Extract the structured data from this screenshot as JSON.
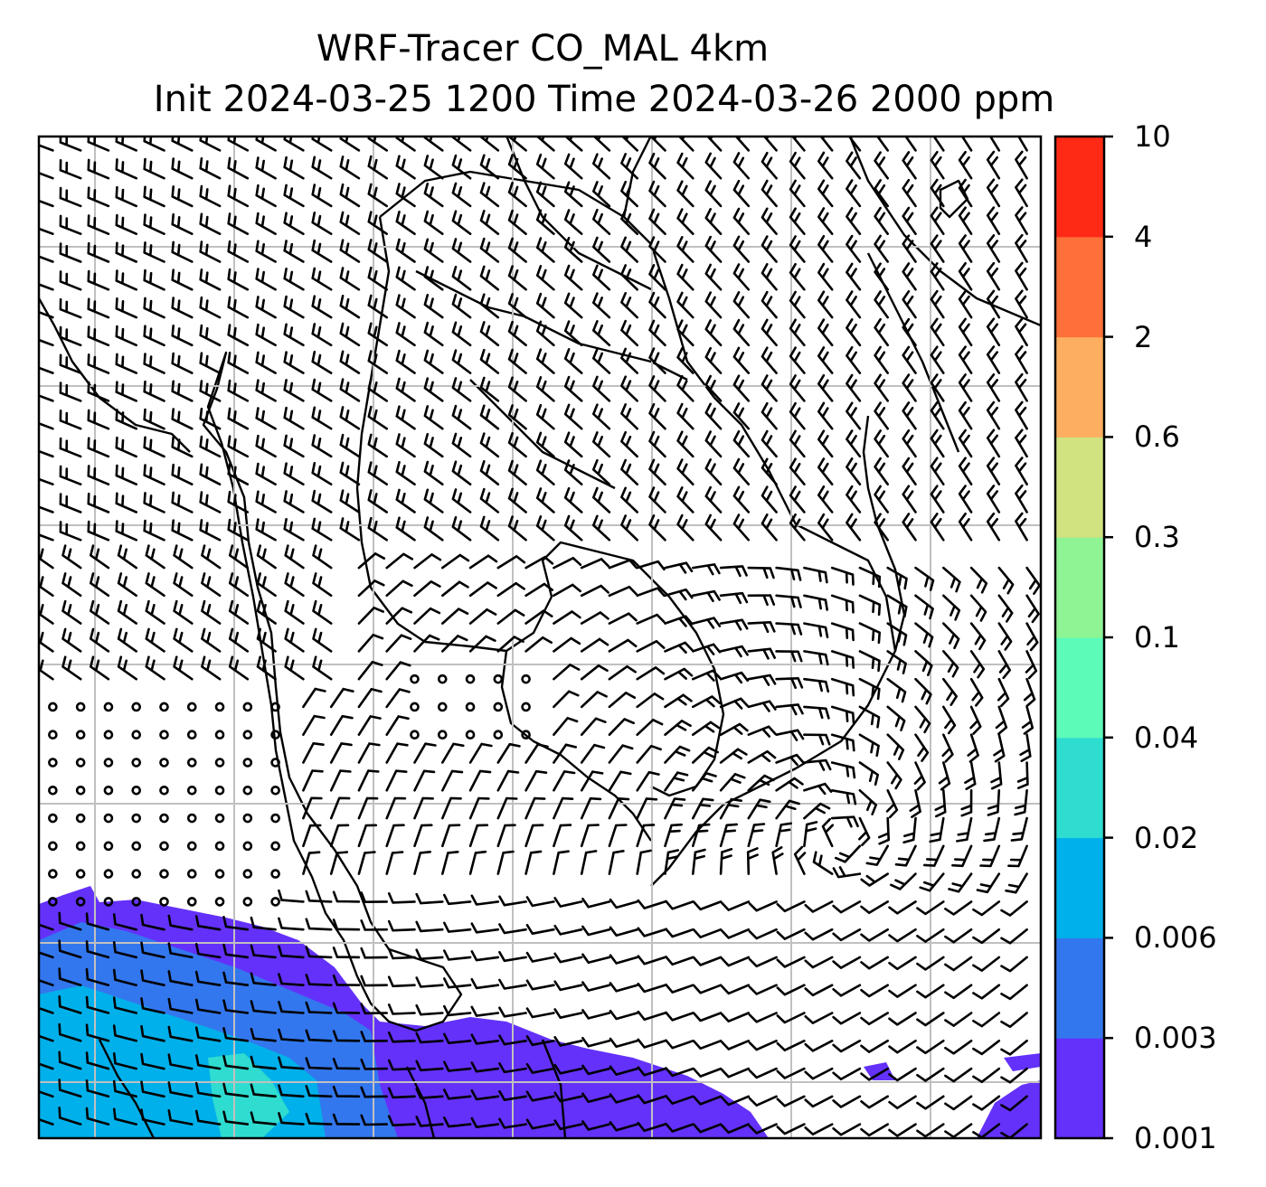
{
  "title": {
    "line1": "WRF-Tracer CO_MAL 4km",
    "line2": "Init 2024-03-25 1200 Time 2024-03-26 2000 ppm"
  },
  "colorbar": {
    "levels": [
      {
        "label": "0.001",
        "color": "#6431fa"
      },
      {
        "label": "0.003",
        "color": "#3377ee"
      },
      {
        "label": "0.006",
        "color": "#00b0ea"
      },
      {
        "label": "0.02",
        "color": "#2fdcd0"
      },
      {
        "label": "0.04",
        "color": "#5dfbb8"
      },
      {
        "label": "0.1",
        "color": "#8ff494"
      },
      {
        "label": "0.3",
        "color": "#d1e281"
      },
      {
        "label": "0.6",
        "color": "#feae60"
      },
      {
        "label": "2",
        "color": "#fe6f39"
      },
      {
        "label": "4",
        "color": "#fe2a15"
      },
      {
        "label": "10",
        "color": null
      }
    ]
  },
  "map": {
    "plume_colors": {
      "low": "#6431fa",
      "mid": "#3377ee",
      "high": "#00b0ea",
      "peak": "#2fdcd0"
    },
    "grid_color": "#c0c0c0",
    "wind_barbs": "north-east sector strong westerlies, calm stations over south-west sea, cyclonic flow to the south-east"
  }
}
